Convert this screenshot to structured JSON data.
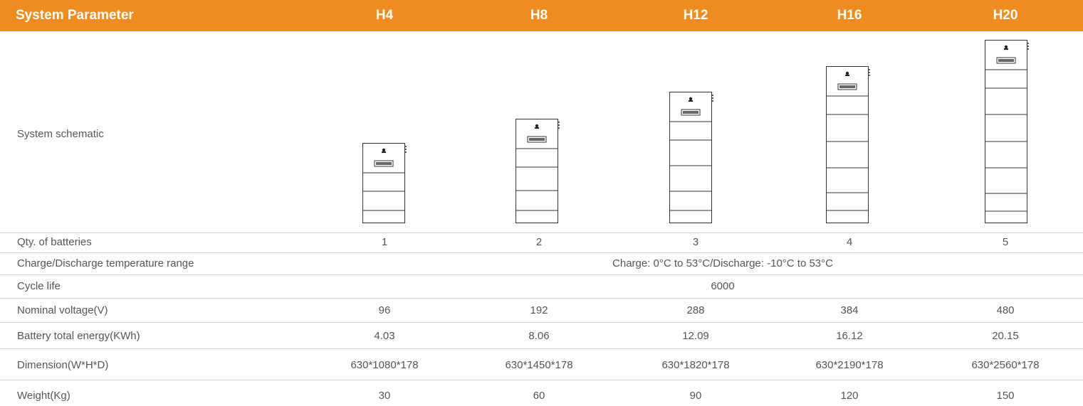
{
  "header": {
    "title": "System Parameter",
    "models": [
      "H4",
      "H8",
      "H12",
      "H16",
      "H20"
    ]
  },
  "schematic": {
    "label": "System schematic",
    "battery_modules": [
      1,
      2,
      3,
      4,
      5
    ]
  },
  "rows": {
    "qty": {
      "label": "Qty. of batteries",
      "values": [
        "1",
        "2",
        "3",
        "4",
        "5"
      ]
    },
    "temp": {
      "label": "Charge/Discharge temperature range",
      "value": "Charge: 0°C to 53°C/Discharge: -10°C to 53°C"
    },
    "cycle": {
      "label": "Cycle life",
      "value": "6000"
    },
    "voltage": {
      "label": "Nominal voltage(V)",
      "values": [
        "96",
        "192",
        "288",
        "384",
        "480"
      ]
    },
    "energy": {
      "label": "Battery total energy(KWh)",
      "values": [
        "4.03",
        "8.06",
        "12.09",
        "16.12",
        "20.15"
      ]
    },
    "dimension": {
      "label": "Dimension(W*H*D)",
      "values": [
        "630*1080*178",
        "630*1450*178",
        "630*1820*178",
        "630*2190*178",
        "630*2560*178"
      ]
    },
    "weight": {
      "label": "Weight(Kg)",
      "values": [
        "30",
        "60",
        "90",
        "120",
        "150"
      ]
    }
  },
  "colors": {
    "header_bg": "#ef8c1f",
    "header_text": "#ffffff",
    "divider": "#d2d2d2",
    "body_text": "#555555"
  }
}
